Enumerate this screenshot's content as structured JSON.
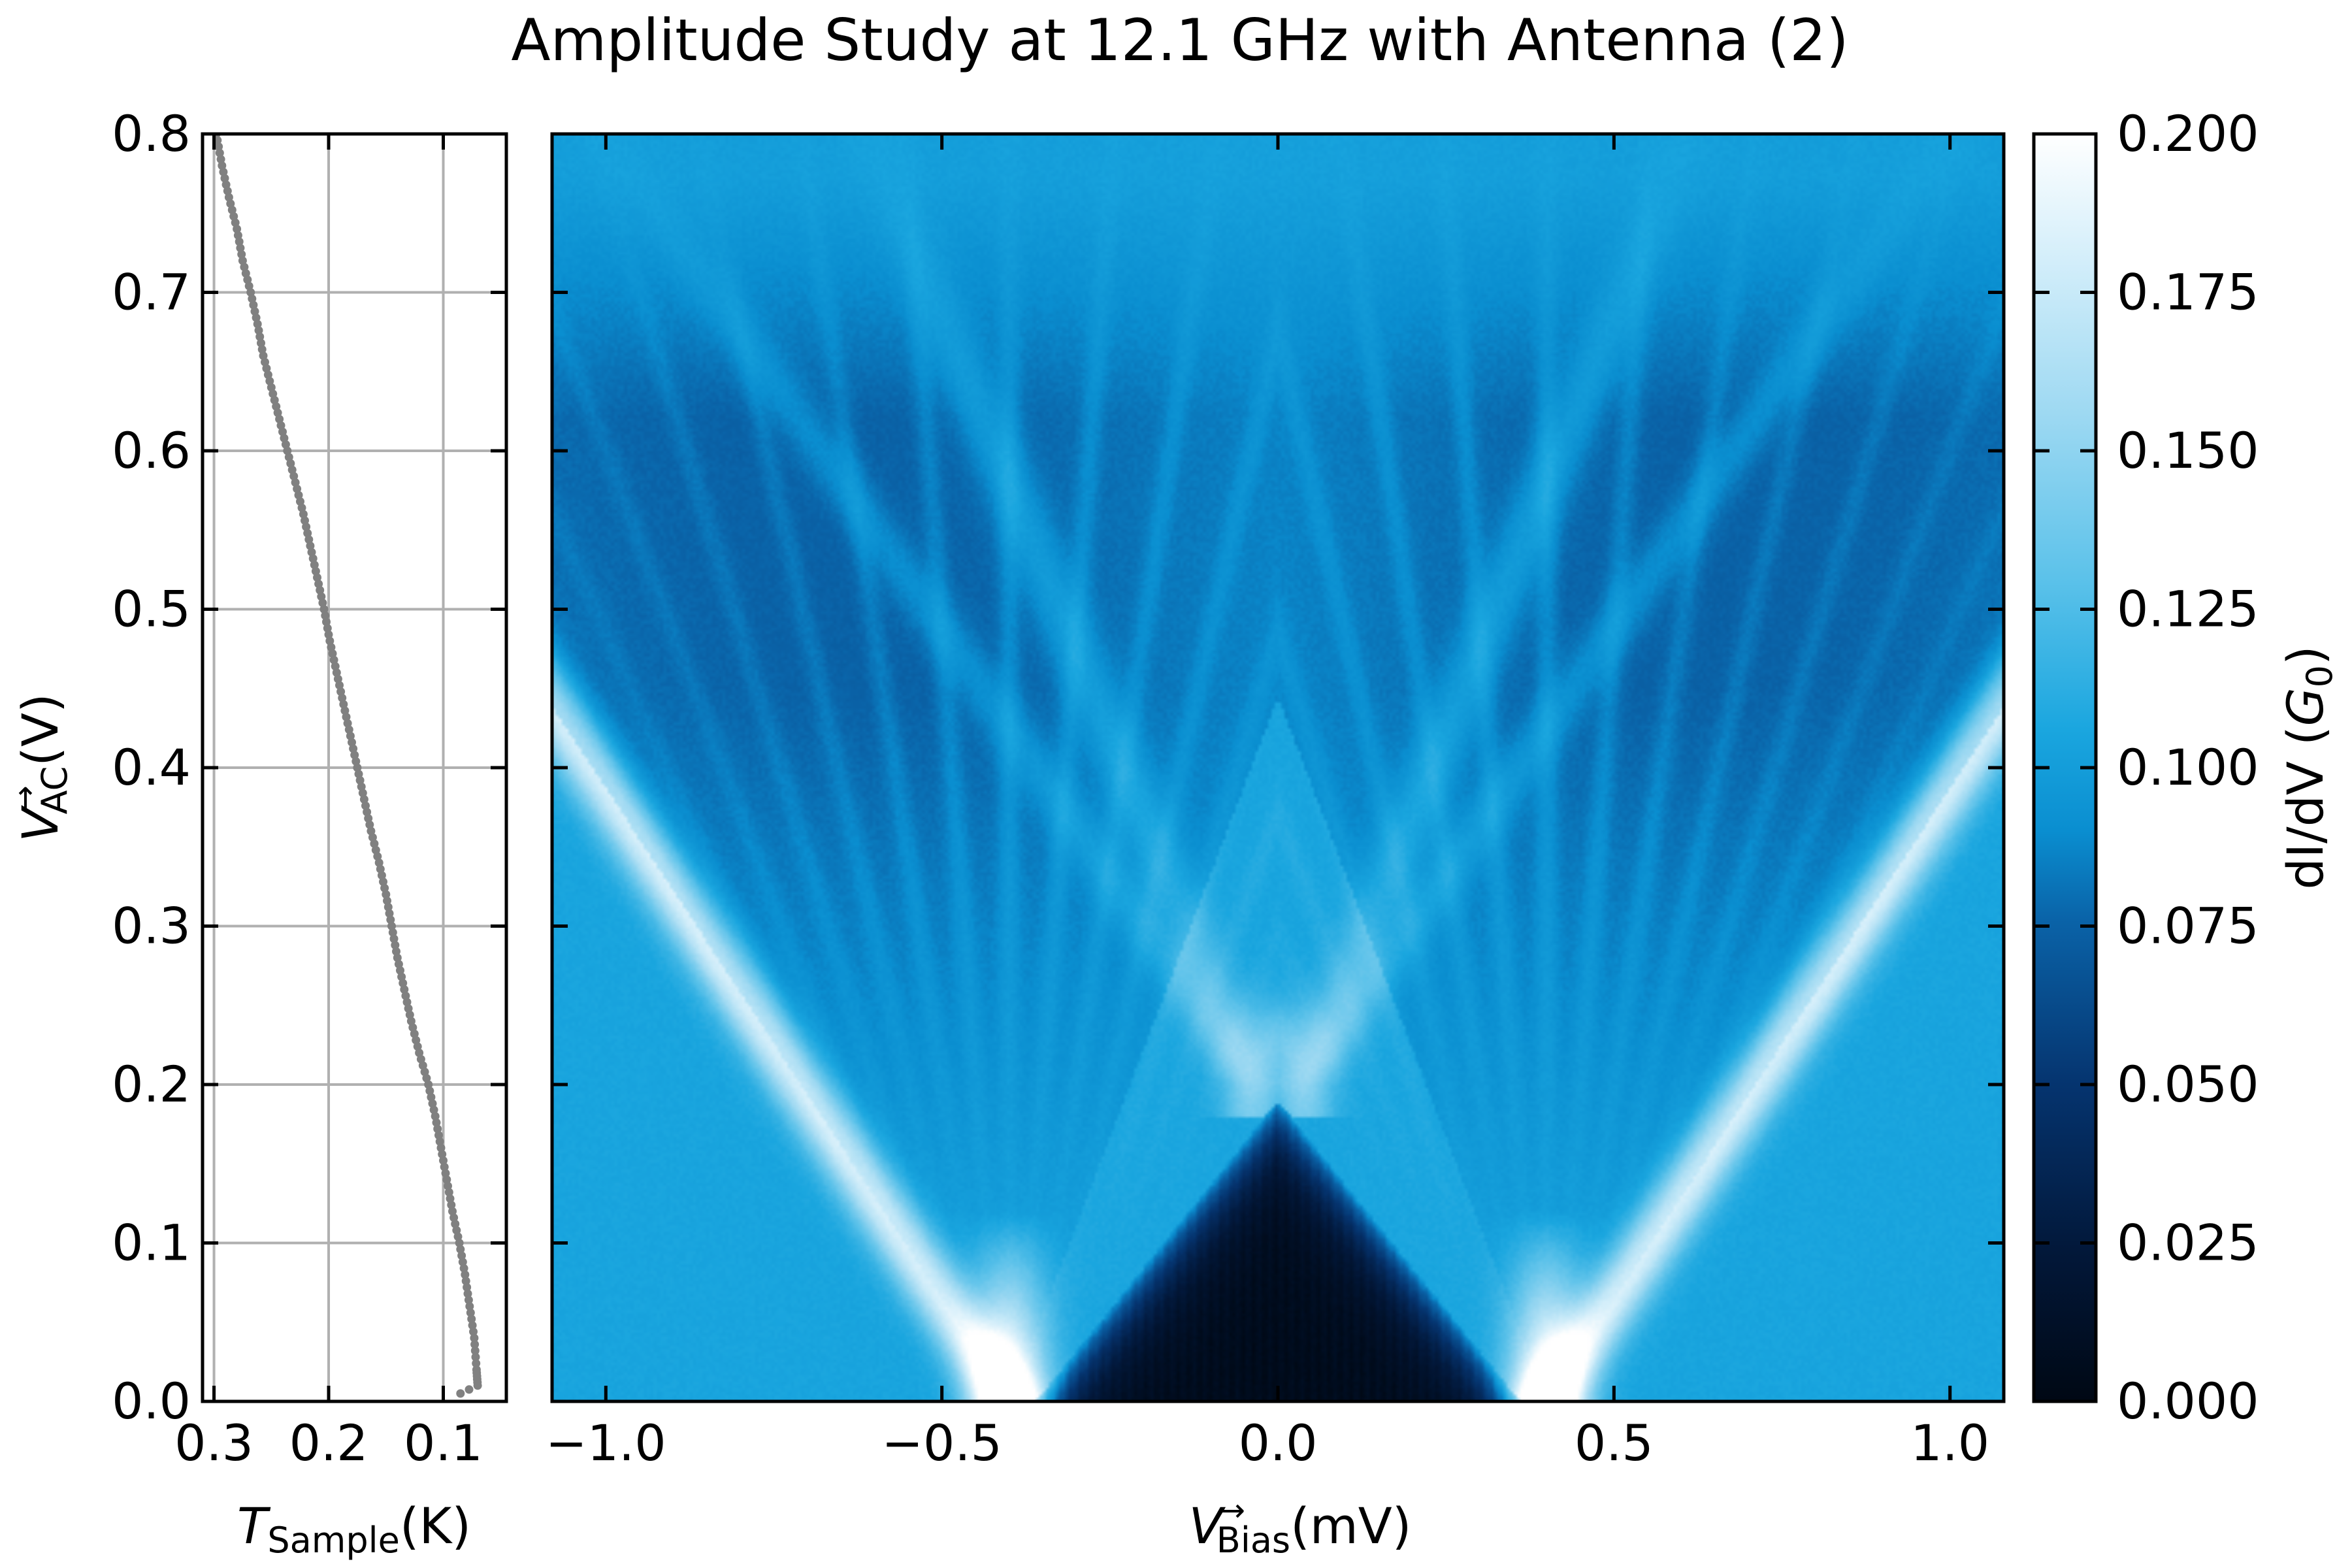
{
  "figure": {
    "title": "Amplitude Study at 12.1 GHz with Antenna (2)"
  },
  "chart_data": [
    {
      "type": "line",
      "panel": "temperature",
      "xlabel": {
        "var": "T",
        "sub": "Sample",
        "unit": "(K)"
      },
      "ylabel": {
        "var": "V",
        "arrow": "→",
        "sub": "AC",
        "unit": "(V)"
      },
      "xlim": [
        0.31,
        0.045
      ],
      "ylim": [
        0.0,
        0.8
      ],
      "xticks": [
        0.3,
        0.2,
        0.1
      ],
      "xtick_labels": [
        "0.3",
        "0.2",
        "0.1"
      ],
      "yticks": [
        0.0,
        0.1,
        0.2,
        0.3,
        0.4,
        0.5,
        0.6,
        0.7,
        0.8
      ],
      "ytick_labels": [
        "0.0",
        "0.1",
        "0.2",
        "0.3",
        "0.4",
        "0.5",
        "0.6",
        "0.7",
        "0.8"
      ],
      "grid": true,
      "series": [
        {
          "color": "#808080",
          "points": [
            [
              0.298,
              0.8
            ],
            [
              0.293,
              0.78
            ],
            [
              0.287,
              0.76
            ],
            [
              0.28,
              0.74
            ],
            [
              0.275,
              0.72
            ],
            [
              0.268,
              0.7
            ],
            [
              0.262,
              0.68
            ],
            [
              0.257,
              0.66
            ],
            [
              0.25,
              0.64
            ],
            [
              0.243,
              0.62
            ],
            [
              0.236,
              0.6
            ],
            [
              0.229,
              0.58
            ],
            [
              0.222,
              0.56
            ],
            [
              0.216,
              0.54
            ],
            [
              0.21,
              0.52
            ],
            [
              0.204,
              0.5
            ],
            [
              0.199,
              0.48
            ],
            [
              0.193,
              0.46
            ],
            [
              0.187,
              0.44
            ],
            [
              0.181,
              0.42
            ],
            [
              0.175,
              0.4
            ],
            [
              0.169,
              0.38
            ],
            [
              0.163,
              0.36
            ],
            [
              0.156,
              0.34
            ],
            [
              0.15,
              0.32
            ],
            [
              0.145,
              0.3
            ],
            [
              0.14,
              0.28
            ],
            [
              0.134,
              0.26
            ],
            [
              0.128,
              0.24
            ],
            [
              0.121,
              0.22
            ],
            [
              0.113,
              0.2
            ],
            [
              0.107,
              0.18
            ],
            [
              0.102,
              0.16
            ],
            [
              0.097,
              0.14
            ],
            [
              0.092,
              0.12
            ],
            [
              0.086,
              0.1
            ],
            [
              0.081,
              0.08
            ],
            [
              0.077,
              0.06
            ],
            [
              0.073,
              0.04
            ],
            [
              0.071,
              0.02
            ],
            [
              0.07,
              0.01
            ],
            [
              0.085,
              0.005
            ]
          ]
        }
      ]
    },
    {
      "type": "heatmap",
      "panel": "map",
      "xlabel": {
        "var": "V",
        "arrow": "→",
        "sub": "Bias",
        "unit": "(mV)"
      },
      "xlim": [
        -1.08,
        1.08
      ],
      "ylim": [
        0.0,
        0.8
      ],
      "xticks": [
        -1.0,
        -0.5,
        0.0,
        0.5,
        1.0
      ],
      "xtick_labels": [
        "−1.0",
        "−0.5",
        "0.0",
        "0.5",
        "1.0"
      ],
      "yticks": [
        0.0,
        0.1,
        0.2,
        0.3,
        0.4,
        0.5,
        0.6,
        0.7,
        0.8
      ],
      "colormap": "blues",
      "background_value": 0.105,
      "features": {
        "gap_mV": 0.4,
        "photon_step_mV": 0.05,
        "dark_region_value": 0.002,
        "bright_edge_value": 0.2
      },
      "colorbar": {
        "label": {
          "text": "dI/dV",
          "unit": "G",
          "sub": "0"
        },
        "range": [
          0.0,
          0.2
        ],
        "ticks": [
          0.0,
          0.025,
          0.05,
          0.075,
          0.1,
          0.125,
          0.15,
          0.175,
          0.2
        ],
        "tick_labels": [
          "0.000",
          "0.025",
          "0.050",
          "0.075",
          "0.100",
          "0.125",
          "0.150",
          "0.175",
          "0.200"
        ]
      }
    }
  ]
}
